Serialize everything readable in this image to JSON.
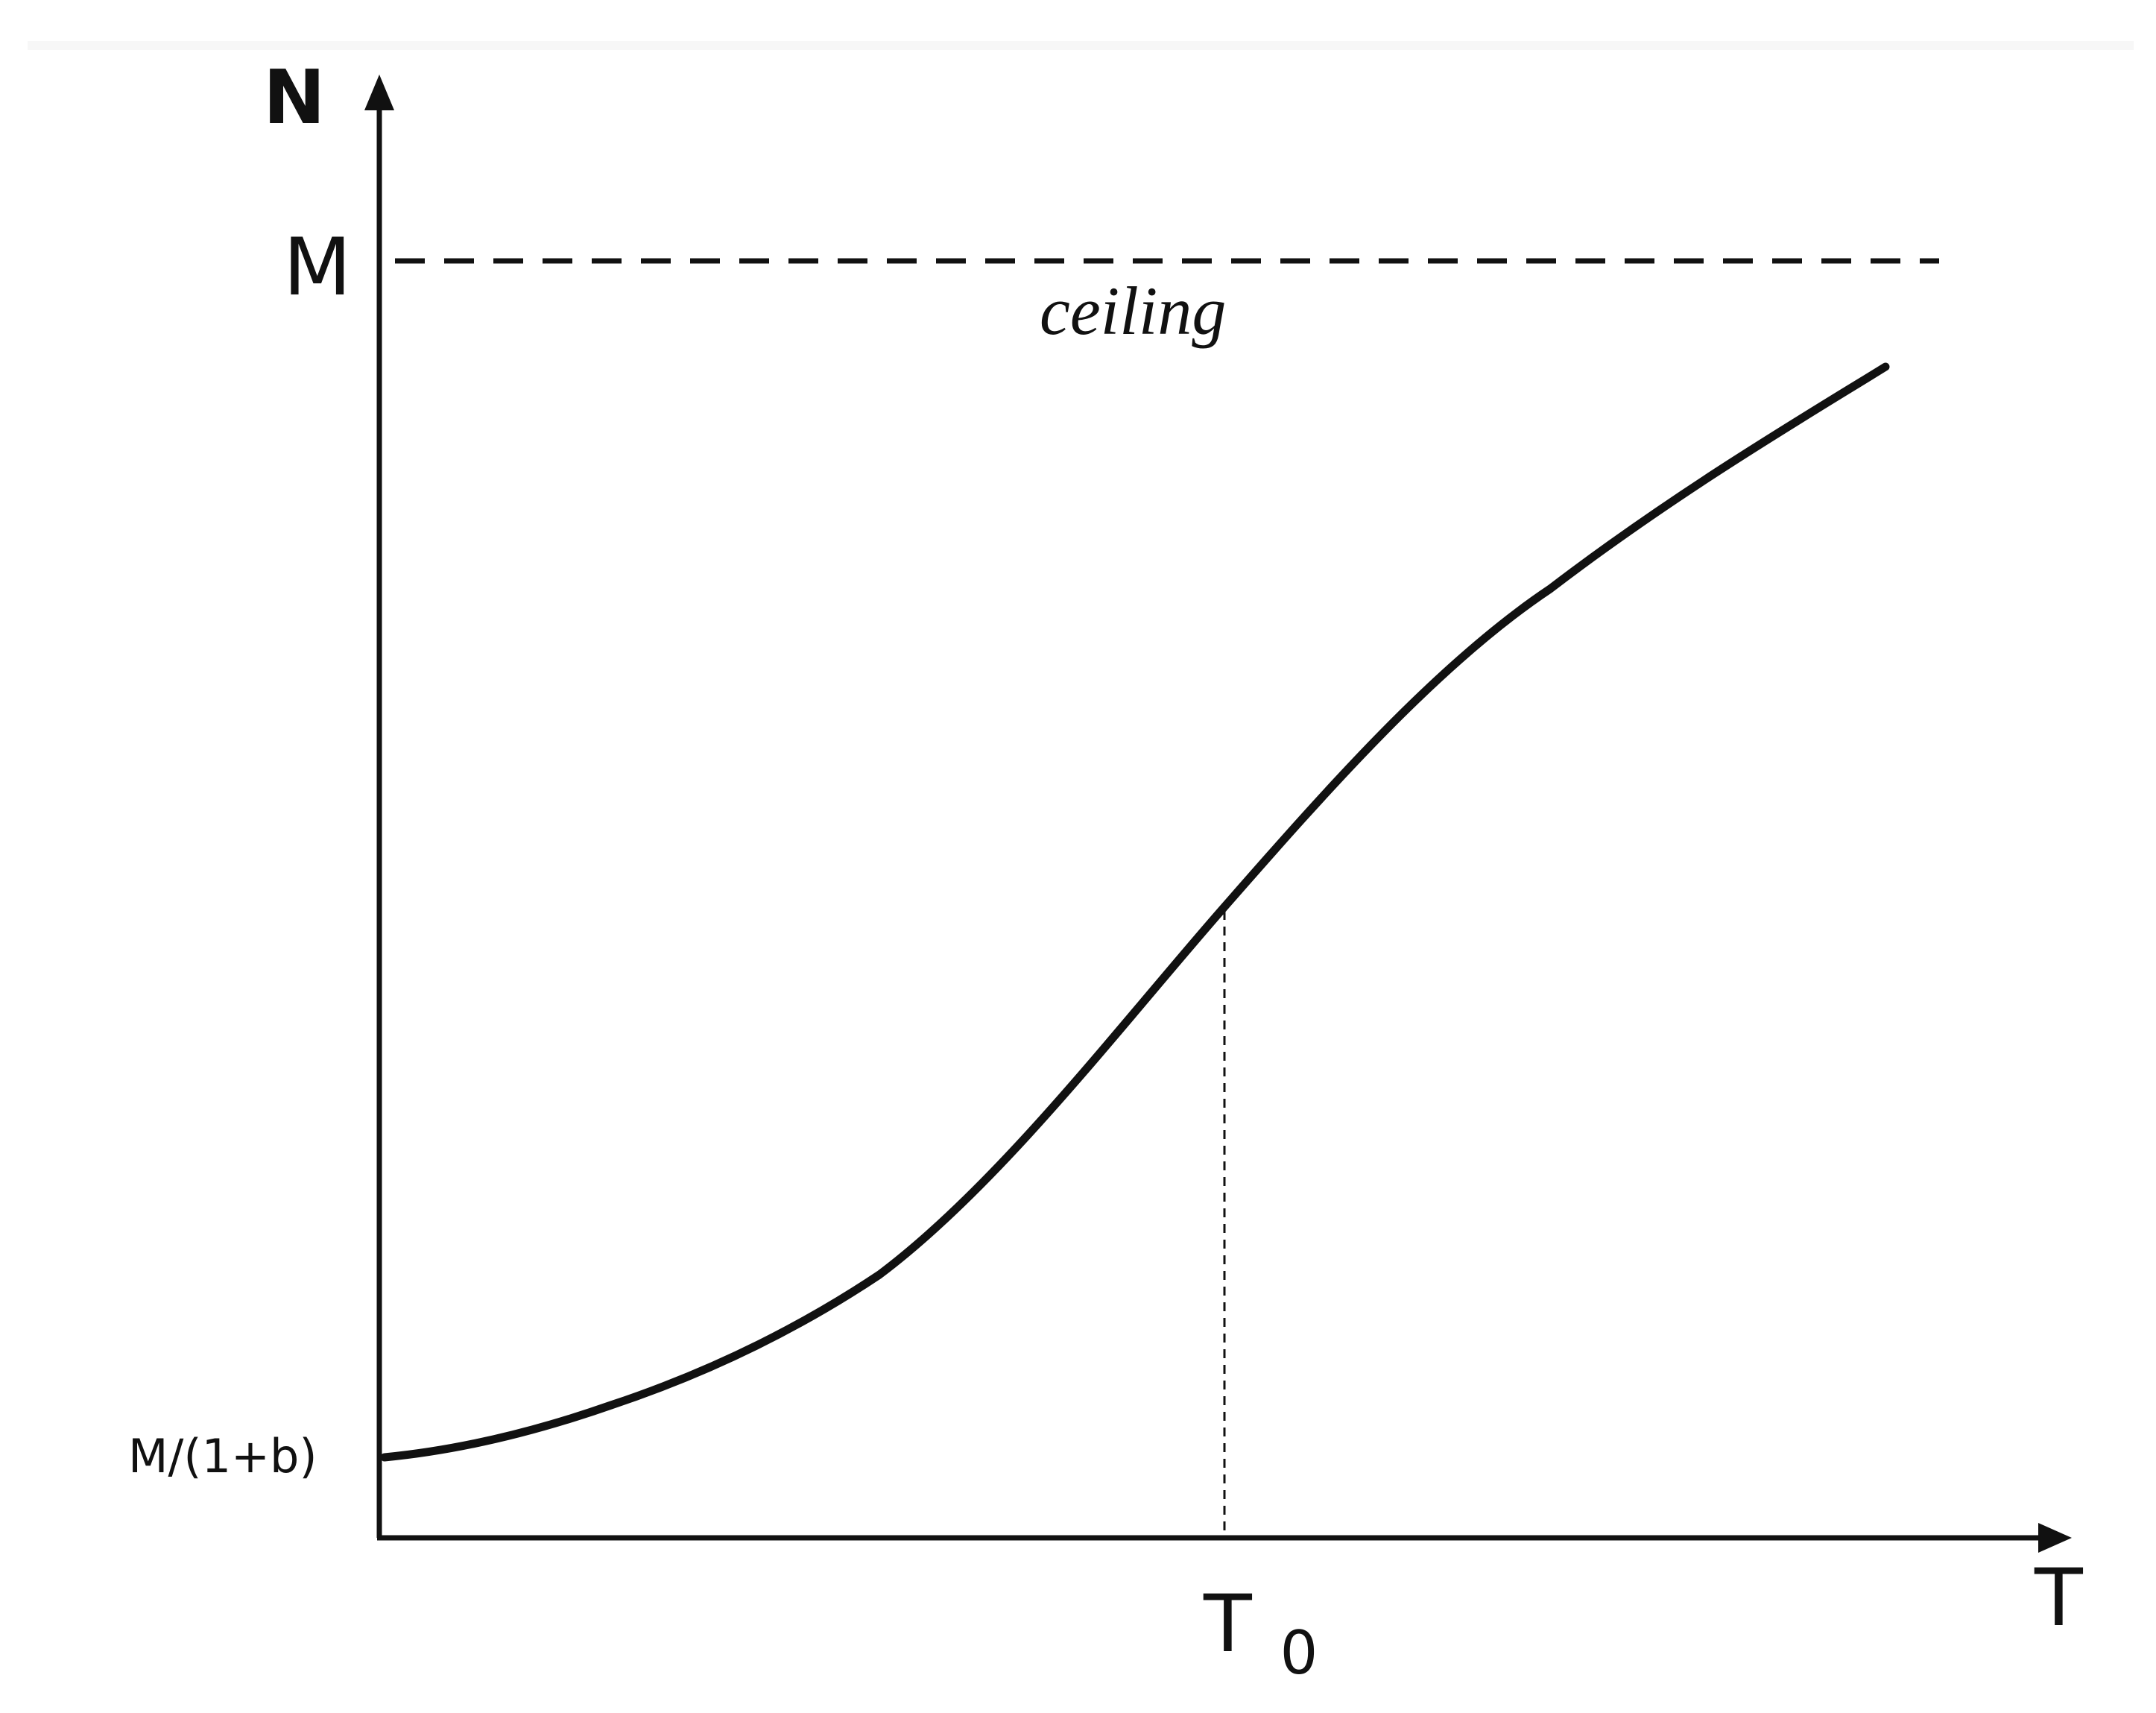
{
  "diagram": {
    "y_axis_label": "N",
    "x_axis_label": "T",
    "ceiling_value_label": "M",
    "ceiling_caption": "ceiling",
    "initial_value_label": "M/(1+b)",
    "inflection_label_main": "T",
    "inflection_label_sub": "0",
    "colors": {
      "ink": "#111111",
      "background": "#ffffff"
    }
  }
}
